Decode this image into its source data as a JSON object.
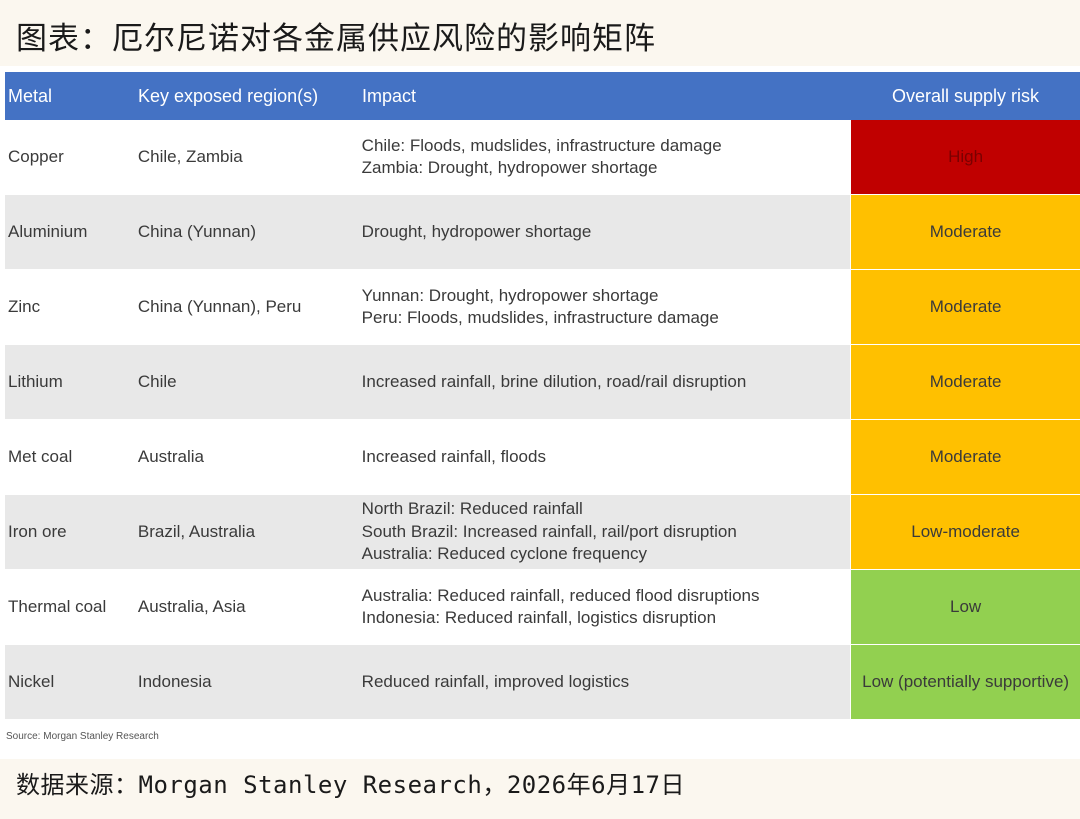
{
  "title": "图表：厄尔尼诺对各金属供应风险的影响矩阵",
  "table": {
    "headers": [
      "Metal",
      "Key exposed region(s)",
      "Impact",
      "Overall supply risk"
    ],
    "rows": [
      {
        "metal": "Copper",
        "region": "Chile, Zambia",
        "impact": [
          "Chile: Floods, mudslides, infrastructure damage",
          "Zambia: Drought, hydropower shortage"
        ],
        "risk": "High",
        "risk_level": "high"
      },
      {
        "metal": "Aluminium",
        "region": "China (Yunnan)",
        "impact": [
          "Drought, hydropower shortage"
        ],
        "risk": "Moderate",
        "risk_level": "moderate"
      },
      {
        "metal": "Zinc",
        "region": "China (Yunnan), Peru",
        "impact": [
          "Yunnan: Drought, hydropower shortage",
          "Peru: Floods, mudslides, infrastructure damage"
        ],
        "risk": "Moderate",
        "risk_level": "moderate"
      },
      {
        "metal": "Lithium",
        "region": "Chile",
        "impact": [
          "Increased rainfall, brine dilution, road/rail disruption"
        ],
        "risk": "Moderate",
        "risk_level": "moderate"
      },
      {
        "metal": "Met coal",
        "region": "Australia",
        "impact": [
          "Increased rainfall, floods"
        ],
        "risk": "Moderate",
        "risk_level": "moderate"
      },
      {
        "metal": "Iron ore",
        "region": "Brazil, Australia",
        "impact": [
          "North Brazil: Reduced rainfall",
          "South Brazil: Increased rainfall, rail/port disruption",
          "Australia: Reduced cyclone frequency"
        ],
        "risk": "Low-moderate",
        "risk_level": "moderate"
      },
      {
        "metal": "Thermal coal",
        "region": "Australia, Asia",
        "impact": [
          "Australia: Reduced rainfall, reduced flood disruptions",
          "Indonesia: Reduced rainfall, logistics disruption"
        ],
        "risk": "Low",
        "risk_level": "low"
      },
      {
        "metal": "Nickel",
        "region": "Indonesia",
        "impact": [
          "Reduced rainfall, improved logistics"
        ],
        "risk": "Low (potentially supportive)",
        "risk_level": "low"
      }
    ]
  },
  "colors": {
    "header": "#4472c4",
    "high": "#c00000",
    "moderate": "#ffc000",
    "low": "#92d050"
  },
  "source_note": "Source: Morgan Stanley Research",
  "footer": "数据来源：Morgan Stanley Research，2026年6月17日"
}
